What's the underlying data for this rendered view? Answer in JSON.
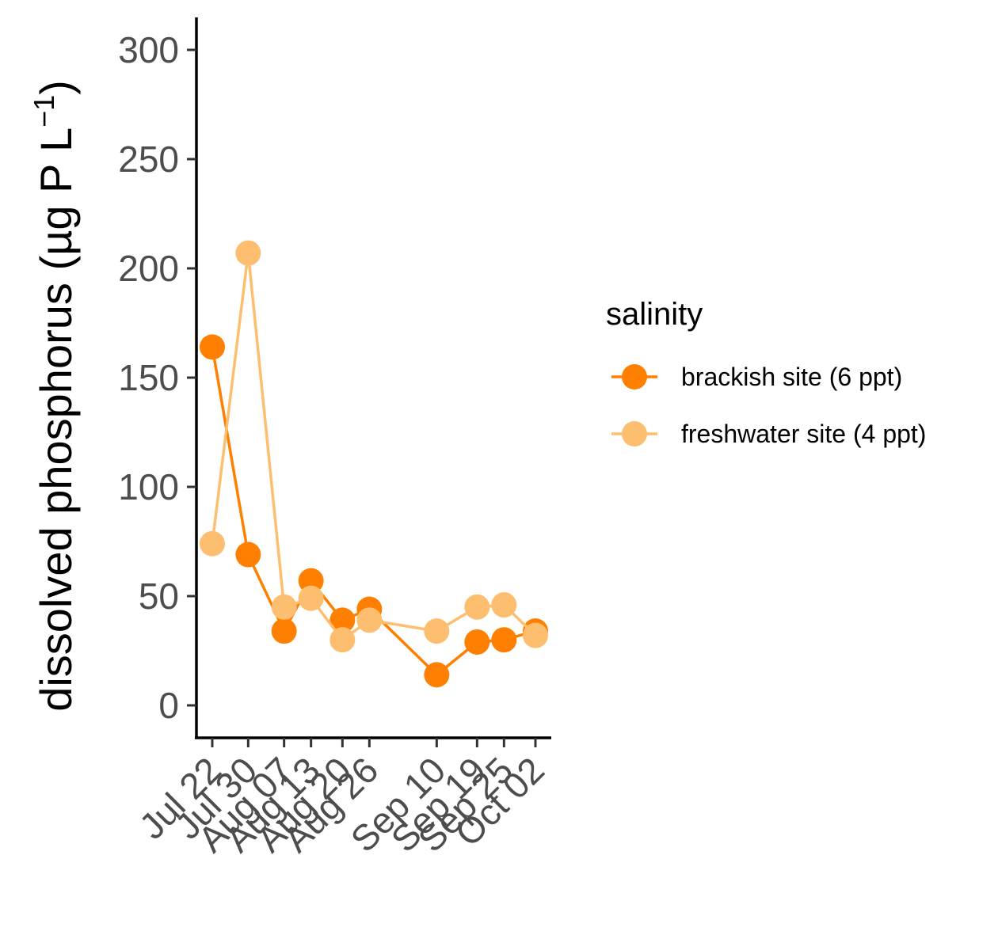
{
  "chart_data": {
    "type": "line",
    "xlabel": "",
    "ylabel_main": "dissolved phosphorus (µg P L",
    "ylabel_sup": "−1",
    "ylabel_end": ")",
    "ylim": [
      -14,
      314
    ],
    "yticks": [
      0,
      50,
      100,
      150,
      200,
      250,
      300
    ],
    "x_categories": [
      "Jul 22",
      "Jul 30",
      "Aug 07",
      "Aug 13",
      "Aug 20",
      "Aug 26",
      "Sep 10",
      "Sep 19",
      "Sep 25",
      "Oct 02"
    ],
    "x_day_of_year": [
      203,
      211,
      219,
      225,
      232,
      238,
      253,
      262,
      268,
      275
    ],
    "legend": {
      "title": "salinity",
      "position": "right"
    },
    "series": [
      {
        "name": "brackish site (6 ppt)",
        "color": "#FF7F00",
        "values": [
          164,
          69,
          34,
          57,
          39,
          44,
          14,
          29,
          30,
          34
        ]
      },
      {
        "name": "freshwater site (4 ppt)",
        "color": "#FDBF6F",
        "values": [
          74,
          207,
          45,
          49,
          30,
          39,
          34,
          45,
          46,
          32
        ]
      }
    ]
  }
}
